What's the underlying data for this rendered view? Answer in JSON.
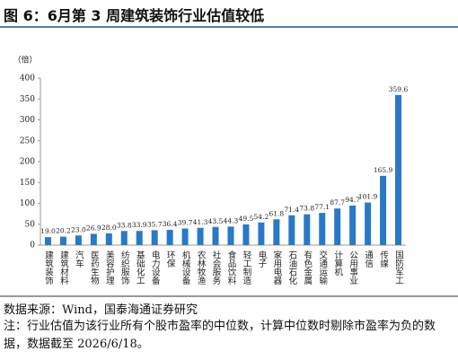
{
  "chart_data": {
    "type": "bar",
    "title": "图 6：6月第 3 周建筑装饰行业估值较低",
    "y_label": "（倍）",
    "categories": [
      "建筑装饰",
      "建筑材料",
      "汽车",
      "医药生物",
      "美容护理",
      "纺织服饰",
      "基础化工",
      "电力设备",
      "环保",
      "机械设备",
      "农林牧渔",
      "社会服务",
      "食品饮料",
      "轻工制造",
      "电子",
      "家用电器",
      "石油石化",
      "有色金属",
      "交通运输",
      "计算机",
      "公用事业",
      "通信",
      "传媒",
      "国防军工"
    ],
    "values": [
      19.0,
      20.2,
      23.0,
      26.9,
      28.0,
      33.8,
      33.9,
      35.7,
      36.4,
      39.7,
      41.3,
      43.5,
      44.3,
      49.5,
      54.2,
      61.8,
      71.4,
      73.8,
      77.1,
      87.7,
      94.7,
      101.9,
      165.9,
      359.6
    ],
    "value_labels": [
      "19.0",
      "20.2",
      "23.0",
      "26.9",
      "28.0",
      "33.8",
      "33.9",
      "35.7",
      "36.4",
      "39.7",
      "41.3",
      "43.5",
      "44.3",
      "49.5",
      "54.2",
      "61.8",
      "71.4",
      "73.8",
      "77.1",
      "87.7",
      "94.7",
      "101.9",
      "165.9",
      "359.6"
    ],
    "color": "#2a78c8",
    "ylim": [
      0,
      400
    ],
    "yticks": [
      0,
      50,
      100,
      150,
      200,
      250,
      300,
      350,
      400
    ],
    "grid": false,
    "source": "数据来源：Wind，国泰海通证券研究",
    "note": "注：行业估值为该行业所有个股市盈率的中位数，计算中位数时剔除市盈率为负的数据，数据截至 2026/6/18。"
  }
}
